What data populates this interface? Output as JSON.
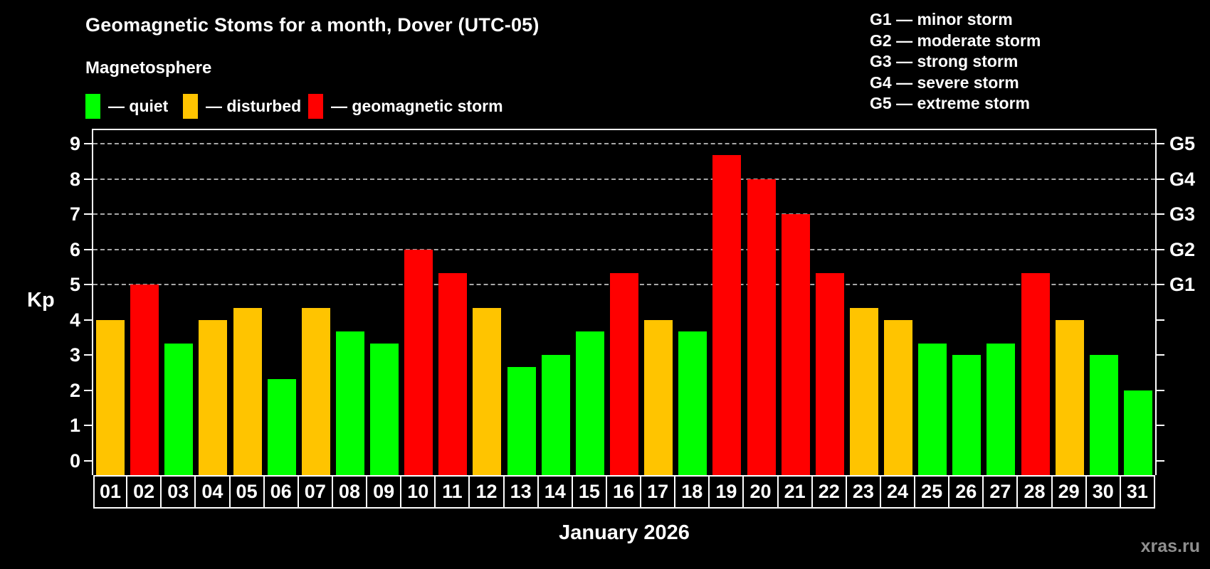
{
  "header": {
    "title": "Geomagnetic Stoms for a month, Dover (UTC-05)",
    "subtitle": "Magnetosphere"
  },
  "legend": {
    "items": [
      {
        "key": "quiet",
        "label": "— quiet",
        "color": "#00ff00"
      },
      {
        "key": "disturbed",
        "label": "— disturbed",
        "color": "#ffc400"
      },
      {
        "key": "storm",
        "label": "— geomagnetic storm",
        "color": "#ff0000"
      }
    ]
  },
  "g_scale_legend": {
    "lines": [
      "G1 — minor storm",
      "G2 — moderate storm",
      "G3 — strong storm",
      "G4 — severe storm",
      "G5 — extreme storm"
    ]
  },
  "chart_data": {
    "type": "bar",
    "title": "Geomagnetic Stoms for a month, Dover (UTC-05)",
    "ylabel": "Kp",
    "xlabel": "January 2026",
    "categories": [
      "01",
      "02",
      "03",
      "04",
      "05",
      "06",
      "07",
      "08",
      "09",
      "10",
      "11",
      "12",
      "13",
      "14",
      "15",
      "16",
      "17",
      "18",
      "19",
      "20",
      "21",
      "22",
      "23",
      "24",
      "25",
      "26",
      "27",
      "28",
      "29",
      "30",
      "31"
    ],
    "values": [
      4,
      5,
      3.33,
      4,
      4.33,
      2.33,
      4.33,
      3.67,
      3.33,
      6,
      5.33,
      4.33,
      2.67,
      3,
      3.67,
      5.33,
      4,
      3.67,
      8.67,
      8,
      7,
      5.33,
      4.33,
      4,
      3.33,
      3,
      3.33,
      5.33,
      4,
      3,
      2
    ],
    "ylim": [
      0,
      9.4
    ],
    "yticks_left": [
      0,
      1,
      2,
      3,
      4,
      5,
      6,
      7,
      8,
      9
    ],
    "yticks_right": [
      {
        "kp": 5,
        "label": "G1"
      },
      {
        "kp": 6,
        "label": "G2"
      },
      {
        "kp": 7,
        "label": "G3"
      },
      {
        "kp": 8,
        "label": "G4"
      },
      {
        "kp": 9,
        "label": "G5"
      }
    ],
    "gridlines_at": [
      5,
      6,
      7,
      8,
      9
    ],
    "grid": "horizontal dashed at storm levels only",
    "legend_position": "top-left",
    "color_thresholds": {
      "disturbed_min": 4,
      "storm_min": 5
    },
    "series_colors": {
      "quiet": "#00ff00",
      "disturbed": "#ffc400",
      "storm": "#ff0000"
    }
  },
  "footer": {
    "watermark": "xras.ru"
  }
}
